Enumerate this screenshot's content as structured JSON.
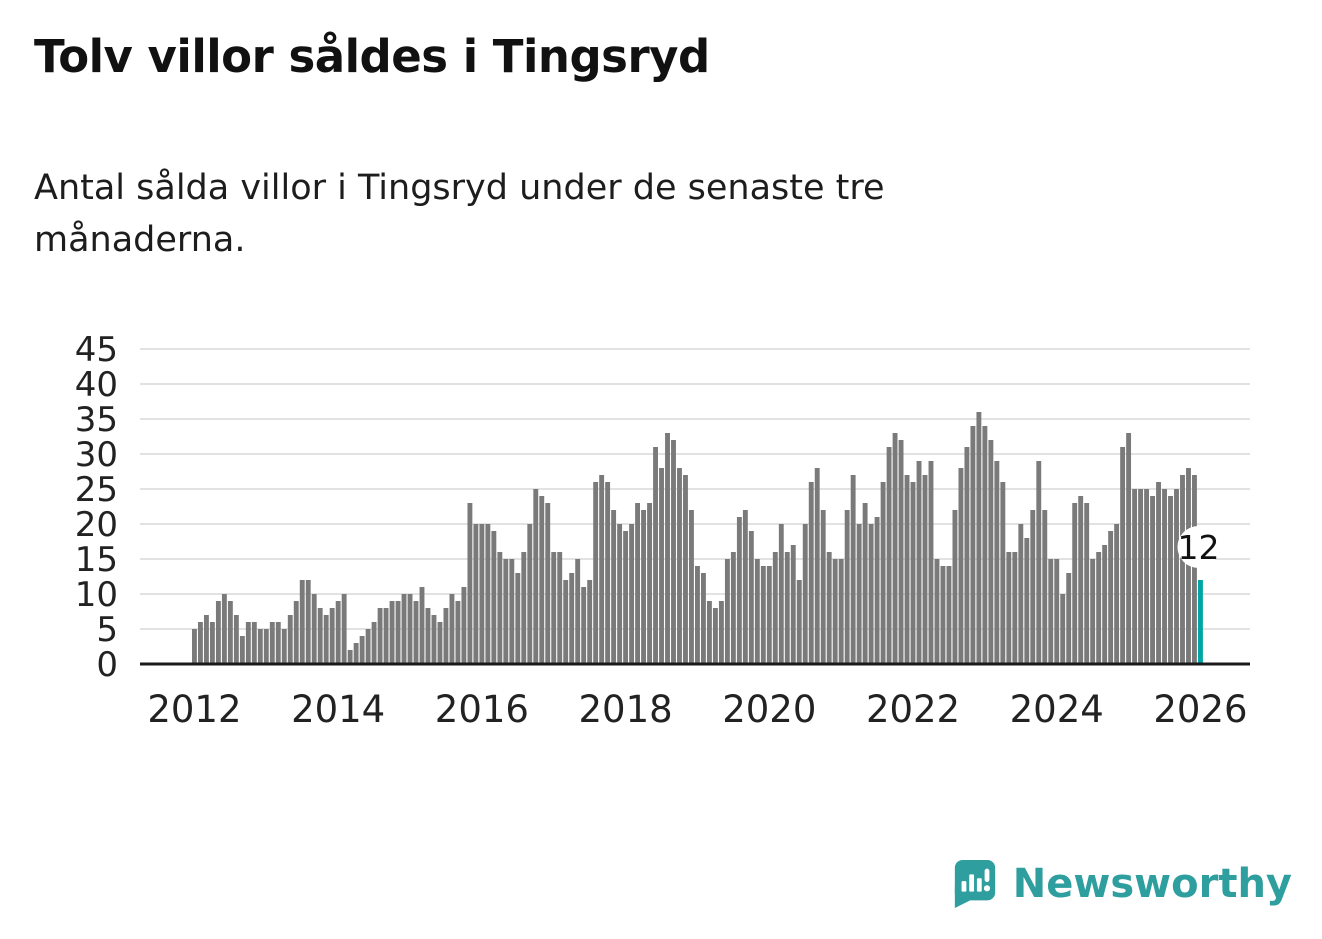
{
  "title": "Tolv villor såldes i Tingsryd",
  "subtitle": "Antal sålda villor i Tingsryd under de senaste tre månaderna.",
  "brand": {
    "name": "Newsworthy",
    "color": "#2E9E9E",
    "logo_icon": "newsworthy-speech-bubble-chart-icon"
  },
  "chart_data": {
    "type": "bar",
    "title": "Tolv villor såldes i Tingsryd",
    "subtitle": "Antal sålda villor i Tingsryd under de senaste tre månaderna.",
    "xlabel": "",
    "ylabel": "",
    "x_start": "2012-01",
    "x_end": "2026-01",
    "frequency": "monthly",
    "ylim": [
      0,
      45
    ],
    "yticks": [
      0,
      5,
      10,
      15,
      20,
      25,
      30,
      35,
      40,
      45
    ],
    "xtick_labels": [
      "2012",
      "2014",
      "2016",
      "2018",
      "2020",
      "2022",
      "2024",
      "2026"
    ],
    "grid": "horizontal",
    "legend": "none",
    "bar_color": "#7A7A7A",
    "highlight_color": "#00A5A5",
    "highlight_last": true,
    "last_value_label": "12",
    "values": [
      5,
      6,
      7,
      6,
      9,
      10,
      9,
      7,
      4,
      6,
      6,
      5,
      5,
      6,
      6,
      5,
      7,
      9,
      12,
      12,
      10,
      8,
      7,
      8,
      9,
      10,
      2,
      3,
      4,
      5,
      6,
      8,
      8,
      9,
      9,
      10,
      10,
      9,
      11,
      8,
      7,
      6,
      8,
      10,
      9,
      11,
      23,
      20,
      20,
      20,
      19,
      16,
      15,
      15,
      13,
      16,
      20,
      25,
      24,
      23,
      16,
      16,
      12,
      13,
      15,
      11,
      12,
      26,
      27,
      26,
      22,
      20,
      19,
      20,
      23,
      22,
      23,
      31,
      28,
      33,
      32,
      28,
      27,
      22,
      14,
      13,
      9,
      8,
      9,
      15,
      16,
      21,
      22,
      19,
      15,
      14,
      14,
      16,
      20,
      16,
      17,
      12,
      20,
      26,
      28,
      22,
      16,
      15,
      15,
      22,
      27,
      20,
      23,
      20,
      21,
      26,
      31,
      33,
      32,
      27,
      26,
      29,
      27,
      29,
      15,
      14,
      14,
      22,
      28,
      31,
      34,
      36,
      34,
      32,
      29,
      26,
      16,
      16,
      20,
      18,
      22,
      29,
      22,
      15,
      15,
      10,
      13,
      23,
      24,
      23,
      15,
      16,
      17,
      19,
      20,
      31,
      33,
      25,
      25,
      25,
      24,
      26,
      25,
      24,
      25,
      27,
      28,
      27,
      12
    ]
  }
}
